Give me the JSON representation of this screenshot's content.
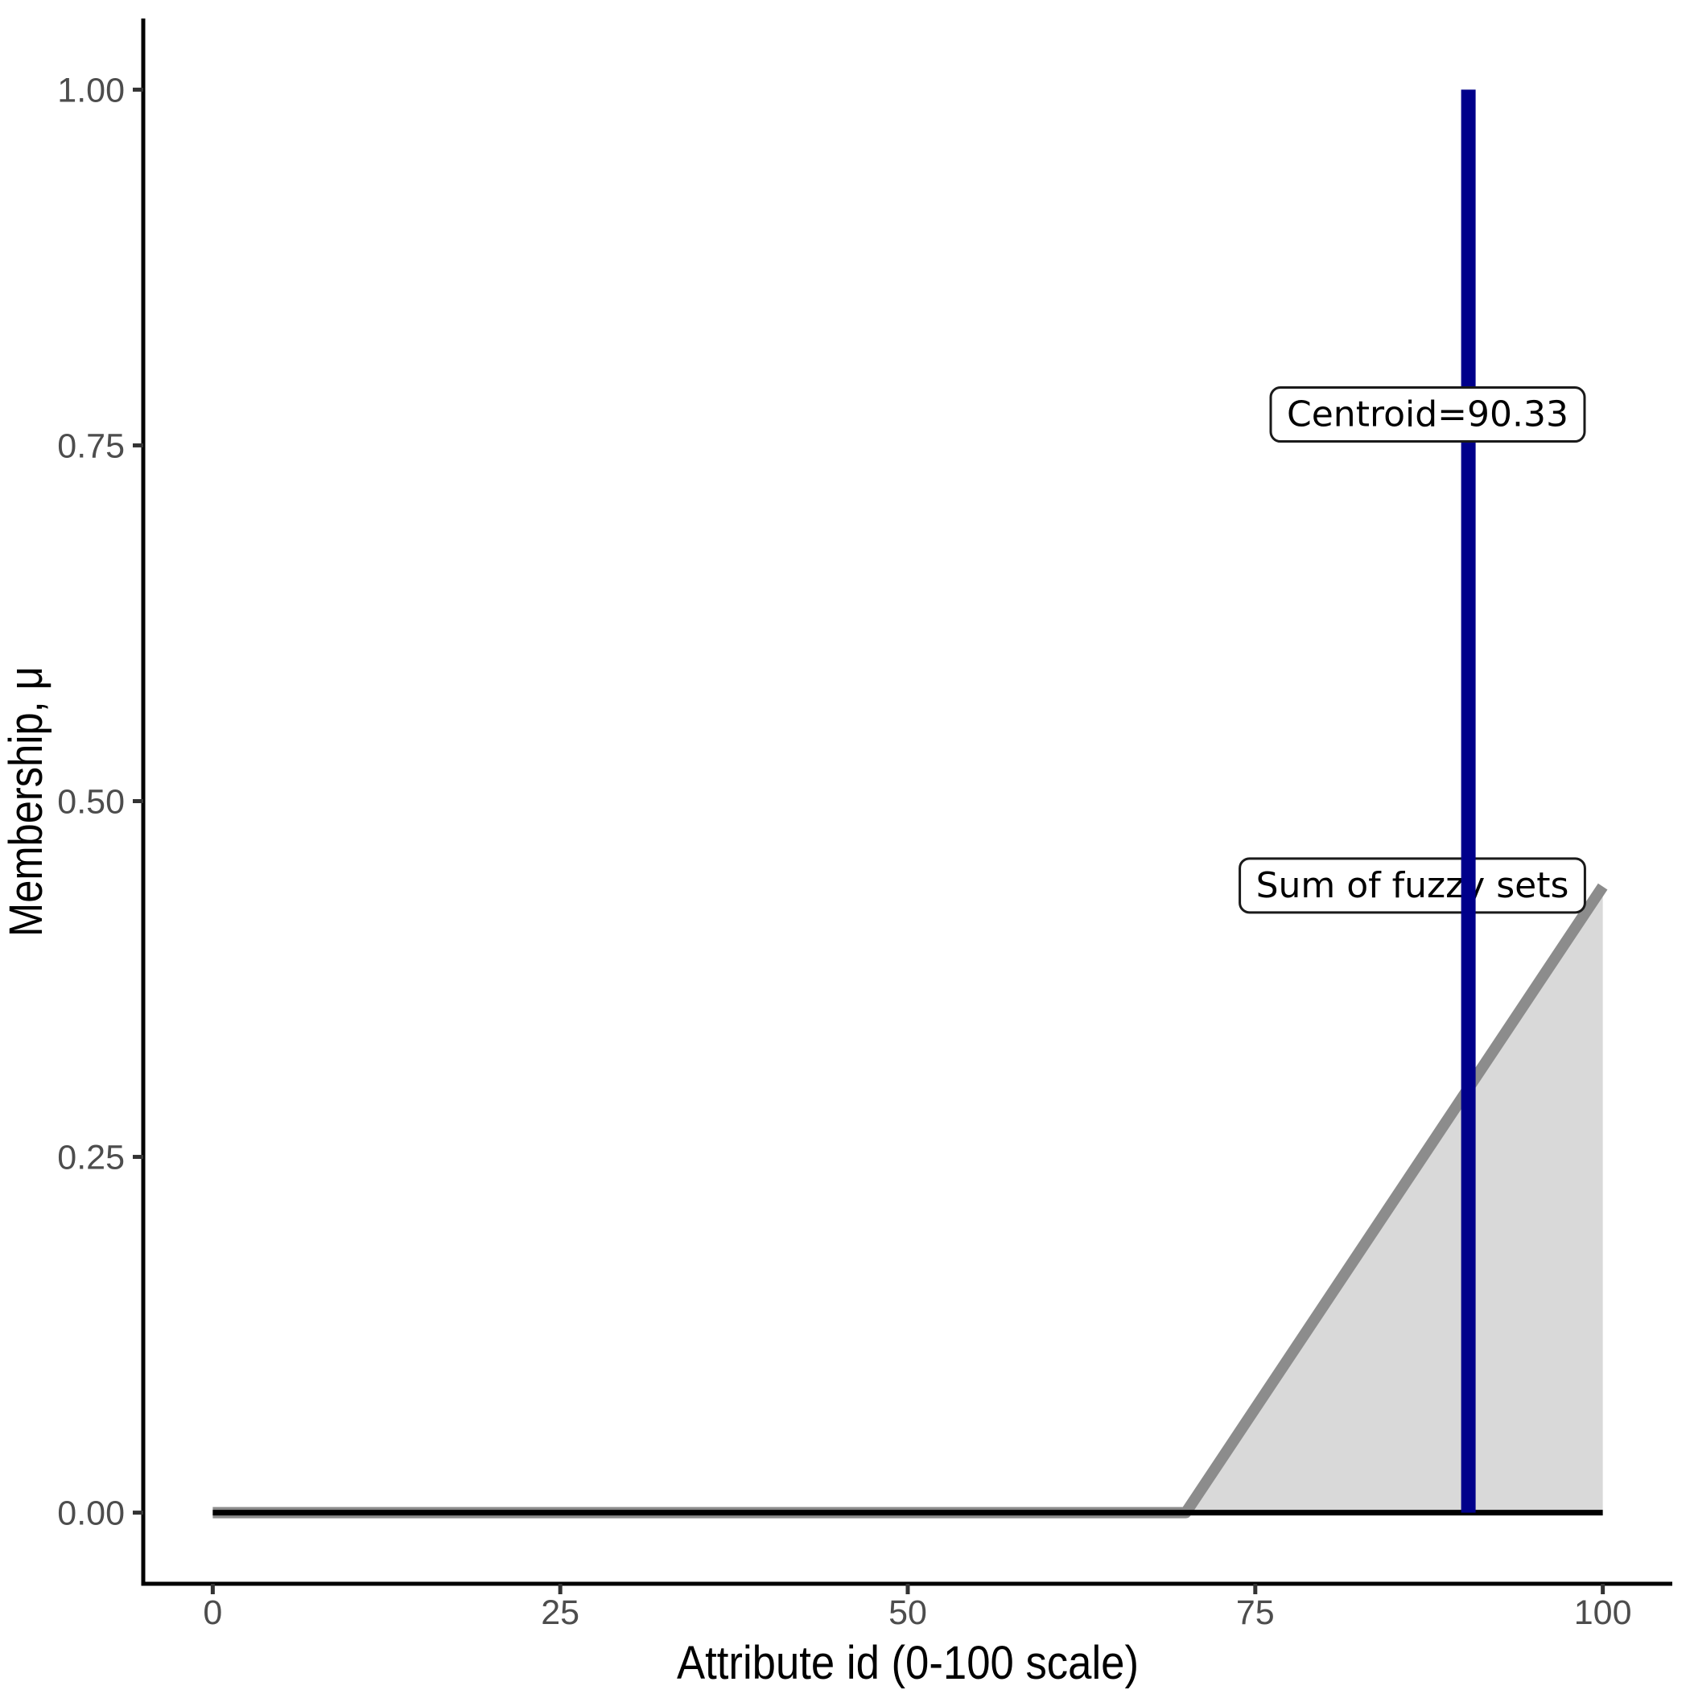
{
  "chart_data": {
    "type": "line",
    "title": "",
    "xlabel": "Attribute id (0-100 scale)",
    "ylabel": "Membership, μ",
    "xlim": [
      0,
      100
    ],
    "ylim": [
      0,
      1
    ],
    "grid": false,
    "legend": false,
    "x_ticks": {
      "values": [
        0,
        25,
        50,
        75,
        100
      ],
      "labels": [
        "0",
        "25",
        "50",
        "75",
        "100"
      ]
    },
    "y_ticks": {
      "values": [
        0,
        0.25,
        0.5,
        0.75,
        1
      ],
      "labels": [
        "0.00",
        "0.25",
        "0.50",
        "0.75",
        "1.00"
      ]
    },
    "series": [
      {
        "name": "sum-of-fuzzy-sets-area",
        "kind": "area-line",
        "points": [
          [
            0,
            0
          ],
          [
            70,
            0
          ],
          [
            100,
            0.44
          ]
        ],
        "line_color": "#8C8C8C",
        "fill_color": "#D9D9D9",
        "line_width": 14
      },
      {
        "name": "zero-baseline",
        "kind": "line",
        "points": [
          [
            0,
            0
          ],
          [
            100,
            0
          ]
        ],
        "line_color": "#000000",
        "line_width": 7
      },
      {
        "name": "centroid-vline",
        "kind": "vline",
        "x": 90.33,
        "y_from": 0,
        "y_to": 1,
        "line_color": "#00008B",
        "line_width": 18
      }
    ],
    "annotations": [
      {
        "id": "sum-of-fuzzy-sets-label",
        "text": "Sum of fuzzy sets",
        "x": 86.3,
        "y": 0.441,
        "layer": "below-centroid-line"
      },
      {
        "id": "centroid-label",
        "text": "Centroid=90.33",
        "x": 87.4,
        "y": 0.772,
        "layer": "above-centroid-line"
      }
    ]
  },
  "styles": {
    "background": "#FFFFFF",
    "axis_line_color": "#000000",
    "tick_color": "#333333",
    "tick_label_color": "#4D4D4D",
    "axis_title_color": "#000000",
    "annotation_text_color": "#000000",
    "annotation_border_color": "#1A1A1A",
    "annotation_fill": "#FFFFFF"
  }
}
